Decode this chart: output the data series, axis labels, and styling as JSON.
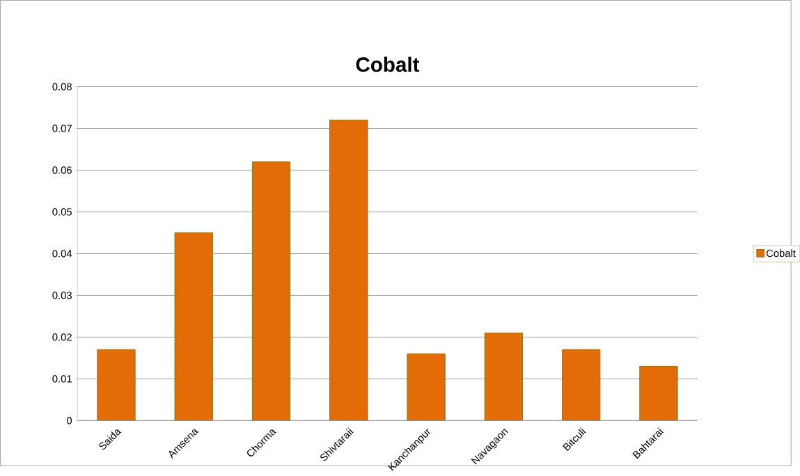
{
  "chart_data": {
    "type": "bar",
    "title": "Cobalt",
    "categories": [
      "Saida",
      "Amsena",
      "Chorma",
      "Shivtaraii",
      "Kanchanpur",
      "Navagaon",
      "Bitculi",
      "Bahtarai"
    ],
    "series": [
      {
        "name": "Cobalt",
        "color": "#e36c09",
        "values": [
          0.017,
          0.045,
          0.062,
          0.072,
          0.016,
          0.021,
          0.017,
          0.013
        ]
      }
    ],
    "ylim": [
      0,
      0.08
    ],
    "yticks": [
      0,
      0.01,
      0.02,
      0.03,
      0.04,
      0.05,
      0.06,
      0.07,
      0.08
    ],
    "grid": "y",
    "legend": "right"
  }
}
